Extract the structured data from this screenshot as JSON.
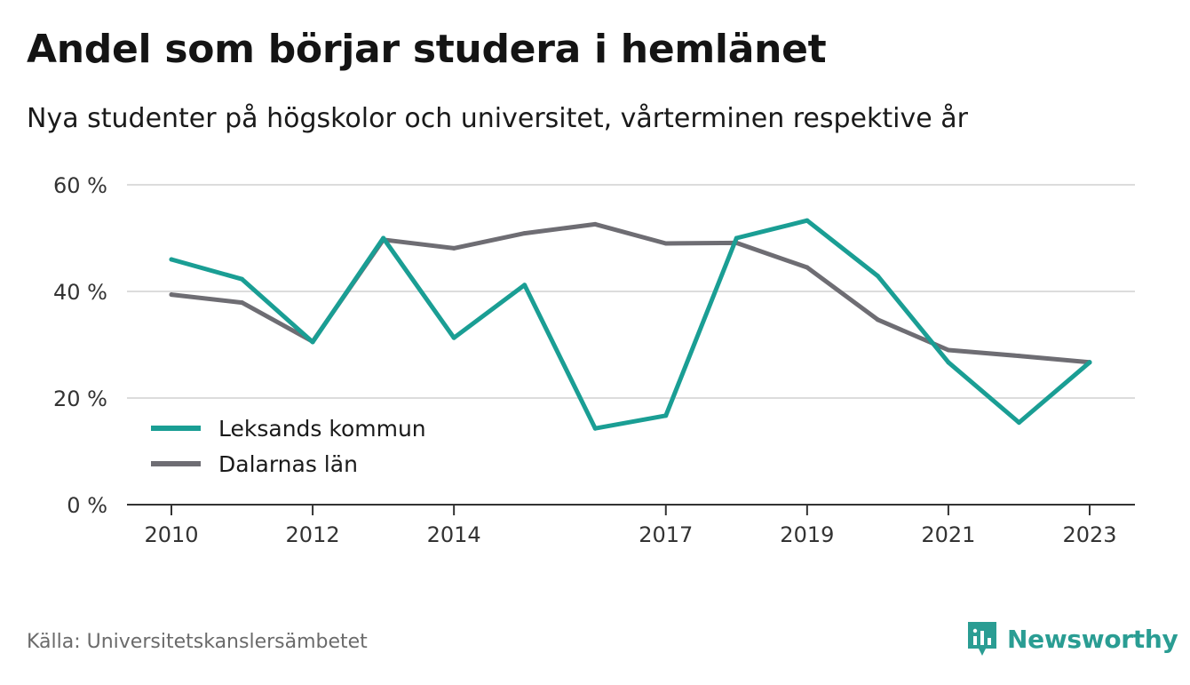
{
  "header": {
    "title": "Andel som börjar studera i hemlänet",
    "subtitle": "Nya studenter på högskolor och universitet, vårterminen respektive år"
  },
  "footer": {
    "source": "Källa: Universitetskanslersämbetet",
    "brand": "Newsworthy"
  },
  "colors": {
    "leksand": "#1a9e94",
    "dalarna": "#6e6d73",
    "grid": "#dcdcdc",
    "axis": "#333333",
    "brand": "#2a9d93"
  },
  "chart_data": {
    "type": "line",
    "x": [
      2010,
      2011,
      2012,
      2013,
      2014,
      2015,
      2016,
      2017,
      2018,
      2019,
      2020,
      2021,
      2022,
      2023
    ],
    "x_tick_labels": [
      "2010",
      "2012",
      "2014",
      "2017",
      "2019",
      "2021",
      "2023"
    ],
    "y_tick_labels": [
      "0 %",
      "20 %",
      "40 %",
      "60 %"
    ],
    "ylim": [
      0,
      60
    ],
    "series": [
      {
        "name": "Leksands kommun",
        "color": "#1a9e94",
        "values": [
          46,
          42.3,
          30.5,
          50,
          31.3,
          41.2,
          14.3,
          16.7,
          50,
          53.3,
          42.9,
          26.7,
          15.4,
          26.7
        ]
      },
      {
        "name": "Dalarnas län",
        "color": "#6e6d73",
        "values": [
          39.4,
          37.9,
          30.6,
          49.7,
          48.1,
          50.9,
          52.6,
          49,
          49.1,
          44.5,
          34.7,
          29,
          27.9,
          26.7
        ]
      }
    ],
    "grid": true,
    "legend_position": "bottom-left"
  }
}
